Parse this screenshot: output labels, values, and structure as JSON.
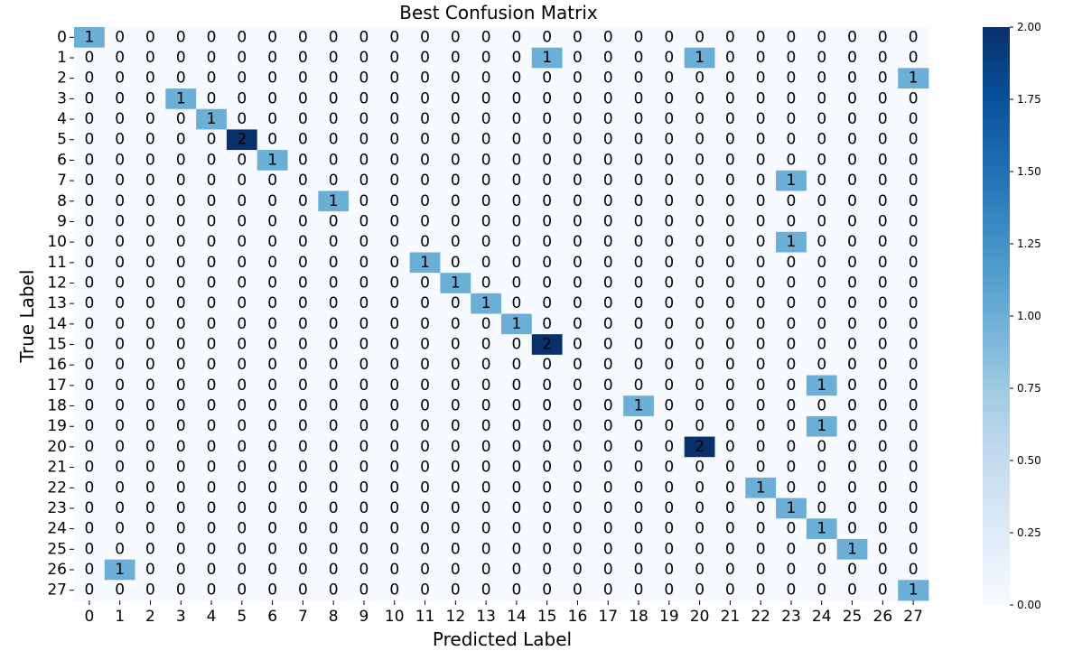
{
  "chart_data": {
    "type": "heatmap",
    "title": "Best Confusion Matrix",
    "xlabel": "Predicted Label",
    "ylabel": "True Label",
    "x_categories": [
      "0",
      "1",
      "2",
      "3",
      "4",
      "5",
      "6",
      "7",
      "8",
      "9",
      "10",
      "11",
      "12",
      "13",
      "14",
      "15",
      "16",
      "17",
      "18",
      "19",
      "20",
      "21",
      "22",
      "23",
      "24",
      "25",
      "26",
      "27"
    ],
    "y_categories": [
      "0",
      "1",
      "2",
      "3",
      "4",
      "5",
      "6",
      "7",
      "8",
      "9",
      "10",
      "11",
      "12",
      "13",
      "14",
      "15",
      "16",
      "17",
      "18",
      "19",
      "20",
      "21",
      "22",
      "23",
      "24",
      "25",
      "26",
      "27"
    ],
    "matrix": [
      [
        1,
        0,
        0,
        0,
        0,
        0,
        0,
        0,
        0,
        0,
        0,
        0,
        0,
        0,
        0,
        0,
        0,
        0,
        0,
        0,
        0,
        0,
        0,
        0,
        0,
        0,
        0,
        0
      ],
      [
        0,
        0,
        0,
        0,
        0,
        0,
        0,
        0,
        0,
        0,
        0,
        0,
        0,
        0,
        0,
        1,
        0,
        0,
        0,
        0,
        1,
        0,
        0,
        0,
        0,
        0,
        0,
        0
      ],
      [
        0,
        0,
        0,
        0,
        0,
        0,
        0,
        0,
        0,
        0,
        0,
        0,
        0,
        0,
        0,
        0,
        0,
        0,
        0,
        0,
        0,
        0,
        0,
        0,
        0,
        0,
        0,
        1
      ],
      [
        0,
        0,
        0,
        1,
        0,
        0,
        0,
        0,
        0,
        0,
        0,
        0,
        0,
        0,
        0,
        0,
        0,
        0,
        0,
        0,
        0,
        0,
        0,
        0,
        0,
        0,
        0,
        0
      ],
      [
        0,
        0,
        0,
        0,
        1,
        0,
        0,
        0,
        0,
        0,
        0,
        0,
        0,
        0,
        0,
        0,
        0,
        0,
        0,
        0,
        0,
        0,
        0,
        0,
        0,
        0,
        0,
        0
      ],
      [
        0,
        0,
        0,
        0,
        0,
        2,
        0,
        0,
        0,
        0,
        0,
        0,
        0,
        0,
        0,
        0,
        0,
        0,
        0,
        0,
        0,
        0,
        0,
        0,
        0,
        0,
        0,
        0
      ],
      [
        0,
        0,
        0,
        0,
        0,
        0,
        1,
        0,
        0,
        0,
        0,
        0,
        0,
        0,
        0,
        0,
        0,
        0,
        0,
        0,
        0,
        0,
        0,
        0,
        0,
        0,
        0,
        0
      ],
      [
        0,
        0,
        0,
        0,
        0,
        0,
        0,
        0,
        0,
        0,
        0,
        0,
        0,
        0,
        0,
        0,
        0,
        0,
        0,
        0,
        0,
        0,
        0,
        1,
        0,
        0,
        0,
        0
      ],
      [
        0,
        0,
        0,
        0,
        0,
        0,
        0,
        0,
        1,
        0,
        0,
        0,
        0,
        0,
        0,
        0,
        0,
        0,
        0,
        0,
        0,
        0,
        0,
        0,
        0,
        0,
        0,
        0
      ],
      [
        0,
        0,
        0,
        0,
        0,
        0,
        0,
        0,
        0,
        0,
        0,
        0,
        0,
        0,
        0,
        0,
        0,
        0,
        0,
        0,
        0,
        0,
        0,
        0,
        0,
        0,
        0,
        0
      ],
      [
        0,
        0,
        0,
        0,
        0,
        0,
        0,
        0,
        0,
        0,
        0,
        0,
        0,
        0,
        0,
        0,
        0,
        0,
        0,
        0,
        0,
        0,
        0,
        1,
        0,
        0,
        0,
        0
      ],
      [
        0,
        0,
        0,
        0,
        0,
        0,
        0,
        0,
        0,
        0,
        0,
        1,
        0,
        0,
        0,
        0,
        0,
        0,
        0,
        0,
        0,
        0,
        0,
        0,
        0,
        0,
        0,
        0
      ],
      [
        0,
        0,
        0,
        0,
        0,
        0,
        0,
        0,
        0,
        0,
        0,
        0,
        1,
        0,
        0,
        0,
        0,
        0,
        0,
        0,
        0,
        0,
        0,
        0,
        0,
        0,
        0,
        0
      ],
      [
        0,
        0,
        0,
        0,
        0,
        0,
        0,
        0,
        0,
        0,
        0,
        0,
        0,
        1,
        0,
        0,
        0,
        0,
        0,
        0,
        0,
        0,
        0,
        0,
        0,
        0,
        0,
        0
      ],
      [
        0,
        0,
        0,
        0,
        0,
        0,
        0,
        0,
        0,
        0,
        0,
        0,
        0,
        0,
        1,
        0,
        0,
        0,
        0,
        0,
        0,
        0,
        0,
        0,
        0,
        0,
        0,
        0
      ],
      [
        0,
        0,
        0,
        0,
        0,
        0,
        0,
        0,
        0,
        0,
        0,
        0,
        0,
        0,
        0,
        2,
        0,
        0,
        0,
        0,
        0,
        0,
        0,
        0,
        0,
        0,
        0,
        0
      ],
      [
        0,
        0,
        0,
        0,
        0,
        0,
        0,
        0,
        0,
        0,
        0,
        0,
        0,
        0,
        0,
        0,
        0,
        0,
        0,
        0,
        0,
        0,
        0,
        0,
        0,
        0,
        0,
        0
      ],
      [
        0,
        0,
        0,
        0,
        0,
        0,
        0,
        0,
        0,
        0,
        0,
        0,
        0,
        0,
        0,
        0,
        0,
        0,
        0,
        0,
        0,
        0,
        0,
        0,
        1,
        0,
        0,
        0
      ],
      [
        0,
        0,
        0,
        0,
        0,
        0,
        0,
        0,
        0,
        0,
        0,
        0,
        0,
        0,
        0,
        0,
        0,
        0,
        1,
        0,
        0,
        0,
        0,
        0,
        0,
        0,
        0,
        0
      ],
      [
        0,
        0,
        0,
        0,
        0,
        0,
        0,
        0,
        0,
        0,
        0,
        0,
        0,
        0,
        0,
        0,
        0,
        0,
        0,
        0,
        0,
        0,
        0,
        0,
        1,
        0,
        0,
        0
      ],
      [
        0,
        0,
        0,
        0,
        0,
        0,
        0,
        0,
        0,
        0,
        0,
        0,
        0,
        0,
        0,
        0,
        0,
        0,
        0,
        0,
        2,
        0,
        0,
        0,
        0,
        0,
        0,
        0
      ],
      [
        0,
        0,
        0,
        0,
        0,
        0,
        0,
        0,
        0,
        0,
        0,
        0,
        0,
        0,
        0,
        0,
        0,
        0,
        0,
        0,
        0,
        0,
        0,
        0,
        0,
        0,
        0,
        0
      ],
      [
        0,
        0,
        0,
        0,
        0,
        0,
        0,
        0,
        0,
        0,
        0,
        0,
        0,
        0,
        0,
        0,
        0,
        0,
        0,
        0,
        0,
        0,
        1,
        0,
        0,
        0,
        0,
        0
      ],
      [
        0,
        0,
        0,
        0,
        0,
        0,
        0,
        0,
        0,
        0,
        0,
        0,
        0,
        0,
        0,
        0,
        0,
        0,
        0,
        0,
        0,
        0,
        0,
        1,
        0,
        0,
        0,
        0
      ],
      [
        0,
        0,
        0,
        0,
        0,
        0,
        0,
        0,
        0,
        0,
        0,
        0,
        0,
        0,
        0,
        0,
        0,
        0,
        0,
        0,
        0,
        0,
        0,
        0,
        1,
        0,
        0,
        0
      ],
      [
        0,
        0,
        0,
        0,
        0,
        0,
        0,
        0,
        0,
        0,
        0,
        0,
        0,
        0,
        0,
        0,
        0,
        0,
        0,
        0,
        0,
        0,
        0,
        0,
        0,
        1,
        0,
        0
      ],
      [
        0,
        1,
        0,
        0,
        0,
        0,
        0,
        0,
        0,
        0,
        0,
        0,
        0,
        0,
        0,
        0,
        0,
        0,
        0,
        0,
        0,
        0,
        0,
        0,
        0,
        0,
        0,
        0
      ],
      [
        0,
        0,
        0,
        0,
        0,
        0,
        0,
        0,
        0,
        0,
        0,
        0,
        0,
        0,
        0,
        0,
        0,
        0,
        0,
        0,
        0,
        0,
        0,
        0,
        0,
        0,
        0,
        1
      ]
    ],
    "colorbar": {
      "vmin": 0,
      "vmax": 2,
      "ticks": [
        "0.00",
        "0.25",
        "0.50",
        "0.75",
        "1.00",
        "1.25",
        "1.50",
        "1.75",
        "2.00"
      ],
      "colormap": "Blues",
      "low_color": "#f7fbff",
      "high_color": "#08306b"
    },
    "grid": false,
    "legend": "right"
  }
}
